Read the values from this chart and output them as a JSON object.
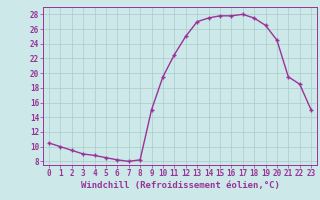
{
  "x": [
    0,
    1,
    2,
    3,
    4,
    5,
    6,
    7,
    8,
    9,
    10,
    11,
    12,
    13,
    14,
    15,
    16,
    17,
    18,
    19,
    20,
    21,
    22,
    23
  ],
  "y": [
    10.5,
    10.0,
    9.5,
    9.0,
    8.8,
    8.5,
    8.2,
    8.0,
    8.2,
    15.0,
    19.5,
    22.5,
    25.0,
    27.0,
    27.5,
    27.8,
    27.8,
    28.0,
    27.5,
    26.5,
    24.5,
    19.5,
    18.5,
    15.0
  ],
  "line_color": "#993399",
  "marker": "+",
  "bg_color": "#cce8e8",
  "grid_color": "#aacccc",
  "axis_color": "#993399",
  "xlabel": "Windchill (Refroidissement éolien,°C)",
  "xlim": [
    -0.5,
    23.5
  ],
  "ylim": [
    7.5,
    29.0
  ],
  "xticks": [
    0,
    1,
    2,
    3,
    4,
    5,
    6,
    7,
    8,
    9,
    10,
    11,
    12,
    13,
    14,
    15,
    16,
    17,
    18,
    19,
    20,
    21,
    22,
    23
  ],
  "yticks": [
    8,
    10,
    12,
    14,
    16,
    18,
    20,
    22,
    24,
    26,
    28
  ],
  "tick_fontsize": 5.5,
  "xlabel_fontsize": 6.5,
  "marker_size": 3.5,
  "line_width": 1.0
}
